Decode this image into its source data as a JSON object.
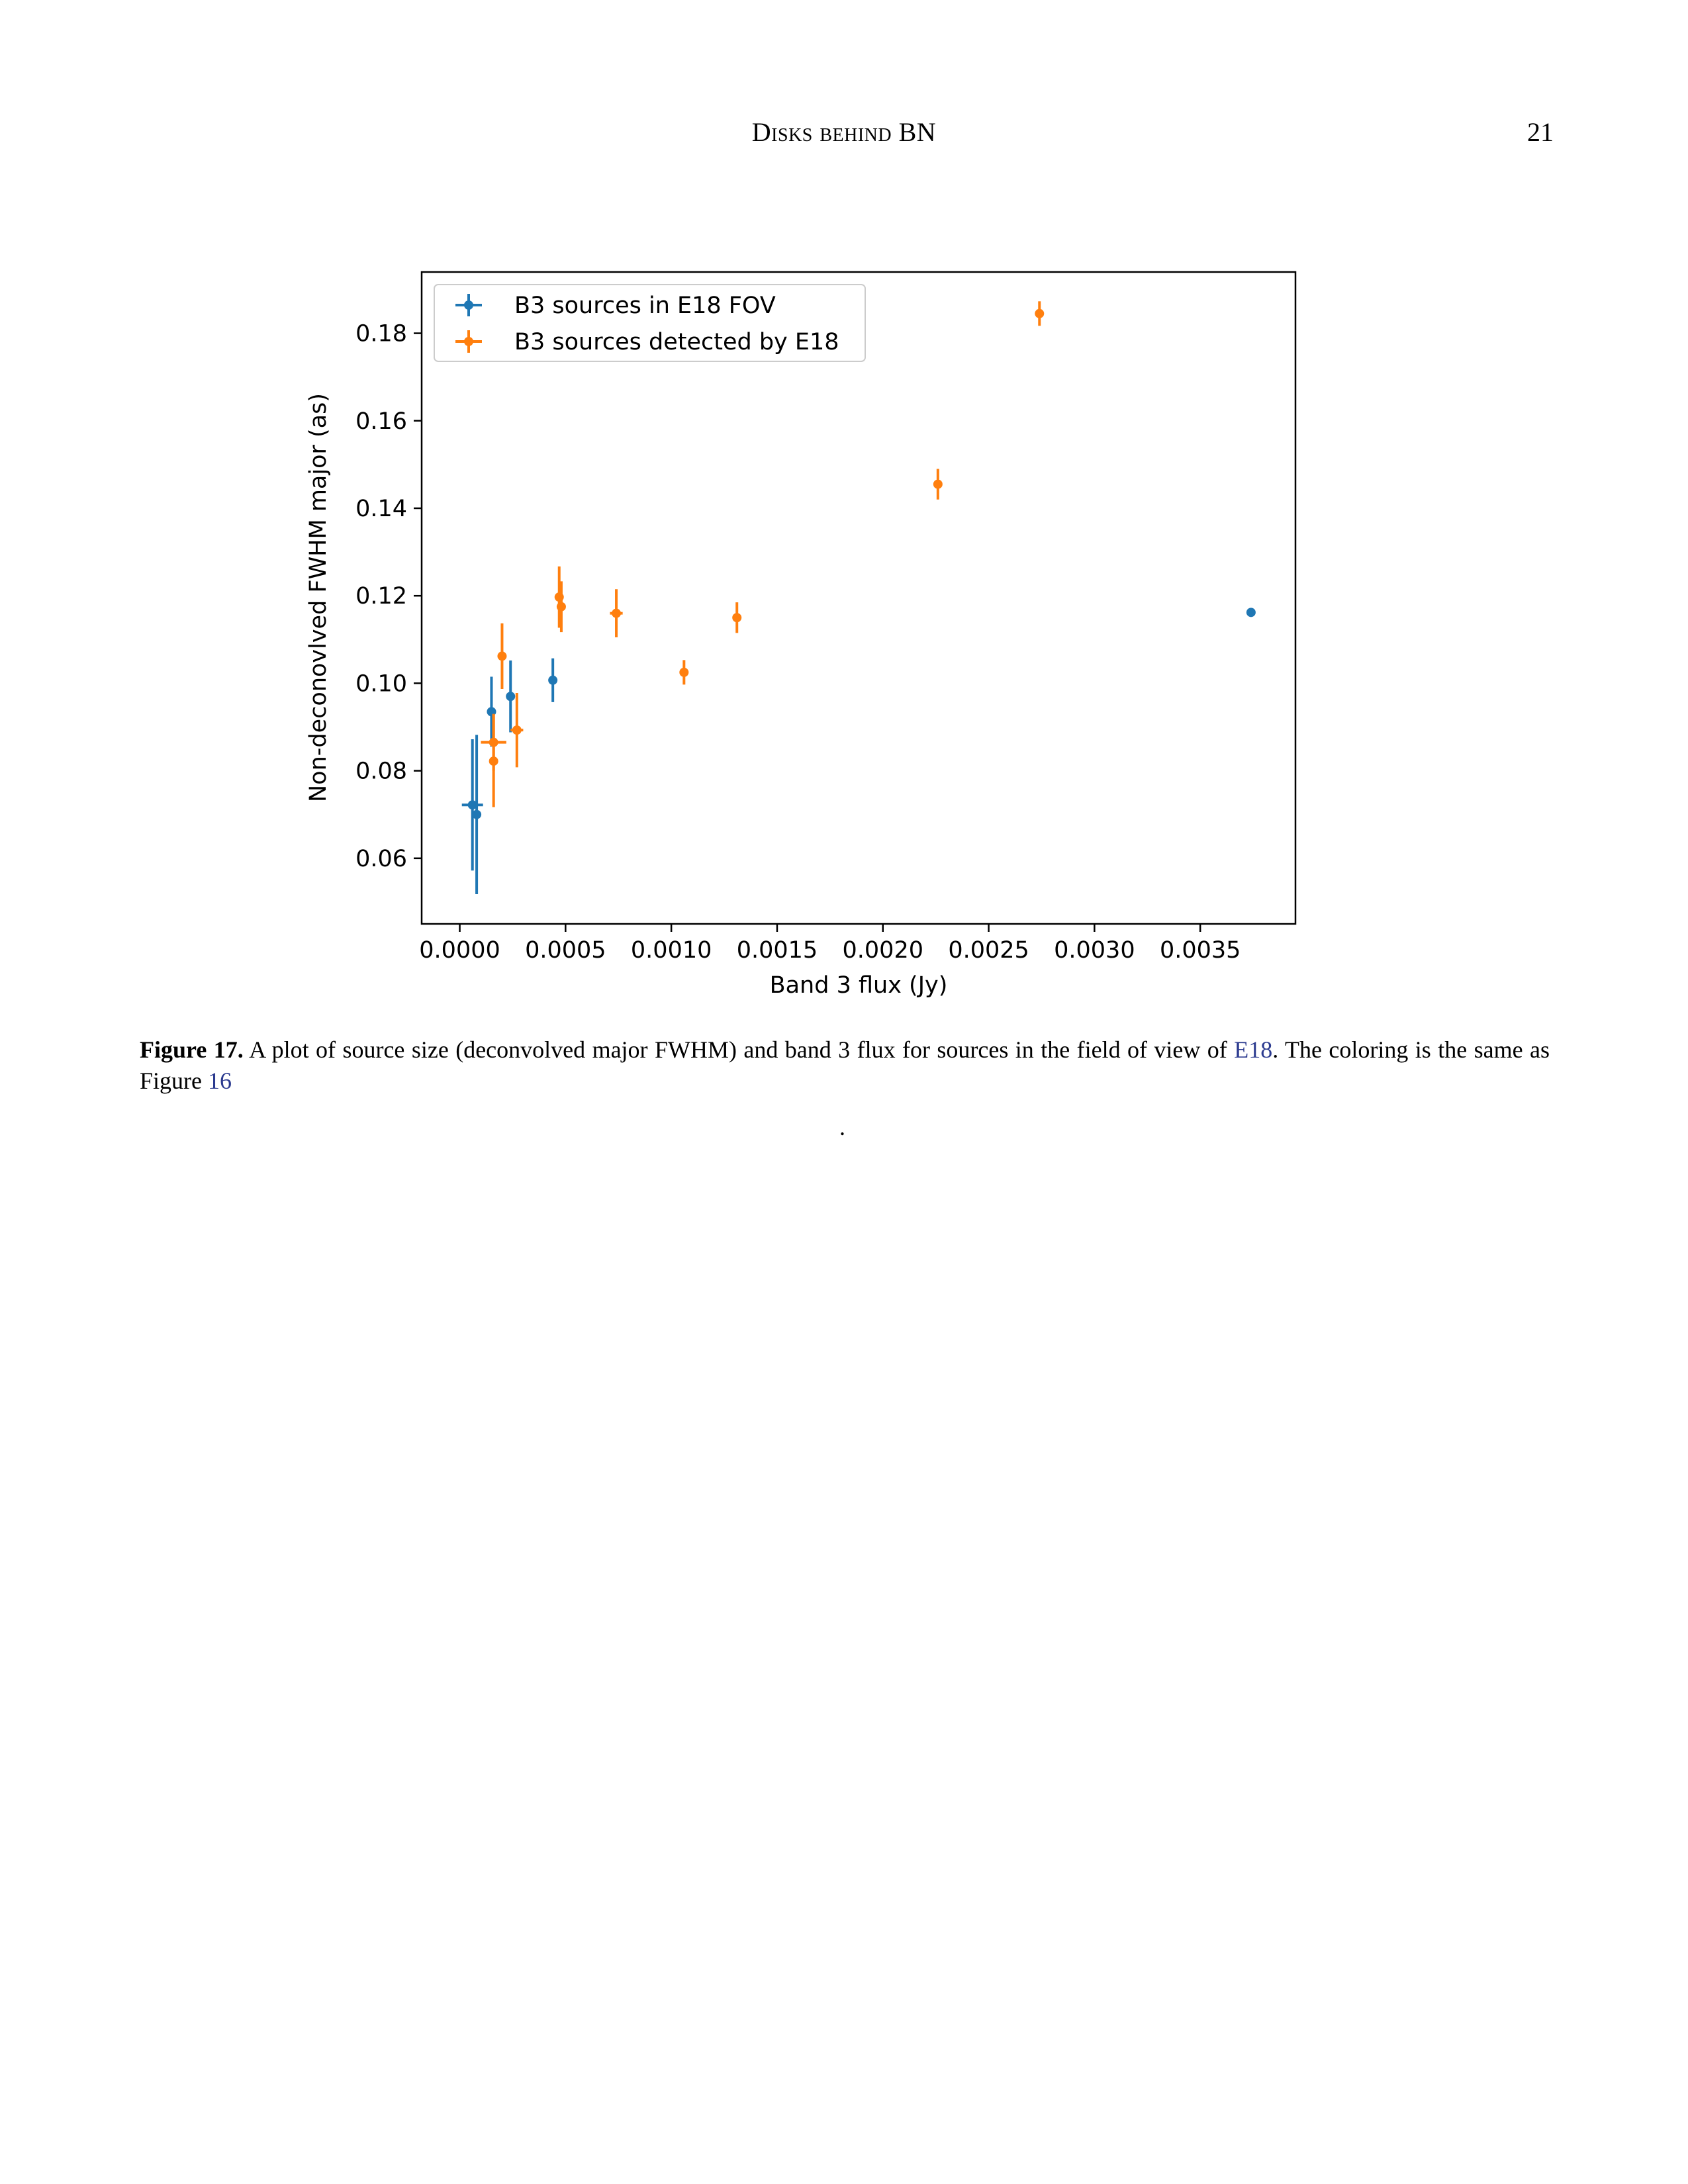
{
  "header": {
    "running_title": "Disks behind BN",
    "page_number": "21"
  },
  "caption": {
    "label": "Figure 17.",
    "text_1": "A plot of source size (deconvolved major FWHM) and band 3 flux for sources in the field of view of",
    "ref_1": "E18",
    "text_2": ". The coloring is the same as Figure",
    "ref_2": "16",
    "trailing_dot": "."
  },
  "chart_data": {
    "type": "scatter",
    "xlabel": "Band 3 flux (Jy)",
    "ylabel": "Non-deconovlved FWHM major (as)",
    "xlim": [
      -0.00018,
      0.00395
    ],
    "ylim": [
      0.045,
      0.194
    ],
    "x_ticks": [
      "0.0000",
      "0.0005",
      "0.0010",
      "0.0015",
      "0.0020",
      "0.0025",
      "0.0030",
      "0.0035"
    ],
    "x_tick_values": [
      0,
      0.0005,
      0.001,
      0.0015,
      0.002,
      0.0025,
      0.003,
      0.0035
    ],
    "y_ticks": [
      "0.06",
      "0.08",
      "0.10",
      "0.12",
      "0.14",
      "0.16",
      "0.18"
    ],
    "y_tick_values": [
      0.06,
      0.08,
      0.1,
      0.12,
      0.14,
      0.16,
      0.18
    ],
    "legend_position": "top-left",
    "grid": false,
    "series": [
      {
        "name": "B3 sources in E18 FOV",
        "color": "#1f77b4",
        "points": [
          {
            "x": 6e-05,
            "y": 0.0722,
            "xerr": 5e-05,
            "yerr": 0.015
          },
          {
            "x": 8e-05,
            "y": 0.07,
            "xerr": 0,
            "yerr": 0.0182
          },
          {
            "x": 0.00015,
            "y": 0.0935,
            "xerr": 0,
            "yerr": 0.008
          },
          {
            "x": 0.00024,
            "y": 0.097,
            "xerr": 0,
            "yerr": 0.0082
          },
          {
            "x": 0.00044,
            "y": 0.1007,
            "xerr": 0,
            "yerr": 0.005
          },
          {
            "x": 0.00374,
            "y": 0.1162,
            "xerr": 0,
            "yerr": 0.0005
          }
        ]
      },
      {
        "name": "B3 sources detected by E18",
        "color": "#ff7f0e",
        "points": [
          {
            "x": 0.00016,
            "y": 0.0865,
            "xerr": 6e-05,
            "yerr": 0.0065
          },
          {
            "x": 0.00016,
            "y": 0.0822,
            "xerr": 0,
            "yerr": 0.0105
          },
          {
            "x": 0.0002,
            "y": 0.1062,
            "xerr": 0,
            "yerr": 0.0075
          },
          {
            "x": 0.00027,
            "y": 0.0893,
            "xerr": 3e-05,
            "yerr": 0.0085
          },
          {
            "x": 0.00047,
            "y": 0.1197,
            "xerr": 0,
            "yerr": 0.007
          },
          {
            "x": 0.00048,
            "y": 0.1175,
            "xerr": 0,
            "yerr": 0.0058
          },
          {
            "x": 0.00074,
            "y": 0.116,
            "xerr": 3e-05,
            "yerr": 0.0055
          },
          {
            "x": 0.00106,
            "y": 0.1025,
            "xerr": 0,
            "yerr": 0.0028
          },
          {
            "x": 0.00131,
            "y": 0.115,
            "xerr": 0,
            "yerr": 0.0035
          },
          {
            "x": 0.00226,
            "y": 0.1455,
            "xerr": 0,
            "yerr": 0.0035
          },
          {
            "x": 0.00274,
            "y": 0.1845,
            "xerr": 0,
            "yerr": 0.0028
          }
        ]
      }
    ]
  }
}
